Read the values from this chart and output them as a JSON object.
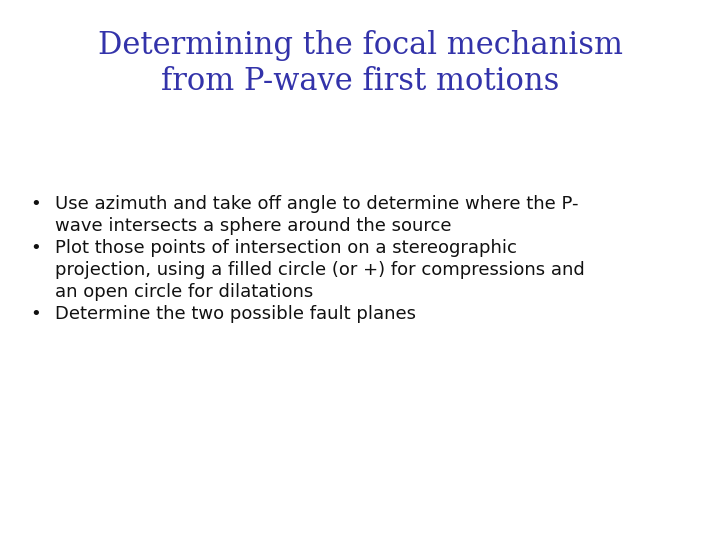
{
  "title_line1": "Determining the focal mechanism",
  "title_line2": "from P-wave first motions",
  "title_color": "#3333aa",
  "title_fontsize": 22,
  "body_fontsize": 13,
  "body_color": "#111111",
  "background_color": "#ffffff",
  "bullet_lines": [
    [
      "Use azimuth and take off angle to determine where the P-",
      "wave intersects a sphere around the source"
    ],
    [
      "Plot those points of intersection on a stereographic",
      "projection, using a filled circle (or +) for compressions and",
      "an open circle for dilatations"
    ],
    [
      "Determine the two possible fault planes"
    ]
  ]
}
